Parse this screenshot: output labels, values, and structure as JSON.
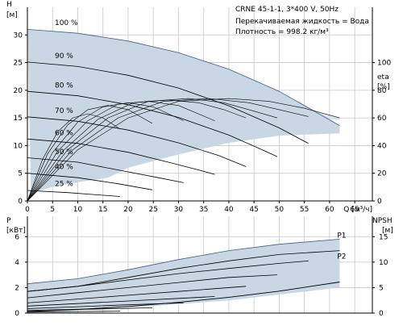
{
  "chart_data": [
    {
      "type": "line",
      "title": "CRNE 45-1-1, 3*400 V, 50Hz",
      "info_lines": [
        "Перекачиваемая жидкость = Вода",
        "Плотность = 998.2 кг/м³"
      ],
      "xlabel": "Q [м³/ч]",
      "ylabel_left": [
        "H",
        "[м]"
      ],
      "ylabel_right": [
        "eta",
        "[%]"
      ],
      "x_ticks": [
        "0",
        "5",
        "10",
        "15",
        "20",
        "25",
        "30",
        "35",
        "40",
        "45",
        "50",
        "55",
        "60",
        "65",
        "Q [м³/ч]"
      ],
      "y_left_ticks": [
        "0",
        "5",
        "10",
        "15",
        "20",
        "25",
        "30"
      ],
      "y_right_ticks": [
        "0",
        "20",
        "40",
        "60",
        "80",
        "100"
      ],
      "xlim": [
        0,
        68.5
      ],
      "ylim_left": [
        0,
        35
      ],
      "ylim_right": [
        0,
        140
      ],
      "grid": true,
      "speed_labels": [
        "100 %",
        "90 %",
        "80 %",
        "70 %",
        "60 %",
        "50 %",
        "40 %",
        "25 %"
      ],
      "operating_range": {
        "upper": [
          [
            0,
            31
          ],
          [
            10,
            30.3
          ],
          [
            20,
            28.9
          ],
          [
            30,
            26.8
          ],
          [
            40,
            23.8
          ],
          [
            50,
            19.8
          ],
          [
            60,
            14.9
          ],
          [
            62,
            13.6
          ]
        ],
        "lower": [
          [
            0.7,
            1.5
          ],
          [
            5,
            2.5
          ],
          [
            10,
            3.4
          ],
          [
            16,
            4.2
          ],
          [
            20,
            6
          ],
          [
            30,
            8.4
          ],
          [
            40,
            10.5
          ],
          [
            50,
            11.8
          ],
          [
            62,
            12.2
          ]
        ]
      },
      "series": [
        {
          "values": [
            [
              0,
              31
            ],
            [
              10,
              30.3
            ],
            [
              20,
              28.9
            ],
            [
              30,
              26.8
            ],
            [
              40,
              23.8
            ],
            [
              50,
              19.8
            ],
            [
              62,
              13.6
            ]
          ]
        },
        {
          "values": [
            [
              0,
              25.1
            ],
            [
              10,
              24.3
            ],
            [
              20,
              22.7
            ],
            [
              30,
              20.4
            ],
            [
              40,
              17.2
            ],
            [
              50,
              13.2
            ],
            [
              55.8,
              10.4
            ]
          ]
        },
        {
          "values": [
            [
              0,
              19.8
            ],
            [
              10,
              19
            ],
            [
              20,
              17.4
            ],
            [
              30,
              15.1
            ],
            [
              40,
              11.9
            ],
            [
              46,
              9.5
            ],
            [
              49.6,
              8
            ]
          ]
        },
        {
          "values": [
            [
              0,
              15.2
            ],
            [
              10,
              14.4
            ],
            [
              20,
              12.8
            ],
            [
              30,
              10.5
            ],
            [
              38,
              8.2
            ],
            [
              43.4,
              6.2
            ]
          ]
        },
        {
          "values": [
            [
              0,
              11.2
            ],
            [
              10,
              10.4
            ],
            [
              20,
              8.8
            ],
            [
              28,
              7
            ],
            [
              34,
              5.6
            ],
            [
              37.2,
              4.8
            ]
          ]
        },
        {
          "values": [
            [
              0,
              7.8
            ],
            [
              10,
              7
            ],
            [
              18,
              5.6
            ],
            [
              26,
              4.2
            ],
            [
              31,
              3.3
            ]
          ]
        },
        {
          "values": [
            [
              0,
              5
            ],
            [
              10,
              4.2
            ],
            [
              18,
              3.1
            ],
            [
              24.8,
              2
            ]
          ]
        },
        {
          "values": [
            [
              0,
              1.9
            ],
            [
              8,
              1.5
            ],
            [
              14,
              1.1
            ],
            [
              18.4,
              0.8
            ]
          ]
        }
      ],
      "efficiency_series": [
        {
          "values": [
            [
              0,
              0
            ],
            [
              10,
              37
            ],
            [
              20,
              60
            ],
            [
              30,
              72
            ],
            [
              40,
              74
            ],
            [
              48,
              72
            ],
            [
              55,
              67
            ],
            [
              62,
              60
            ]
          ]
        },
        {
          "values": [
            [
              0,
              0
            ],
            [
              9,
              37
            ],
            [
              18,
              60
            ],
            [
              27,
              72
            ],
            [
              36,
              74
            ],
            [
              44,
              71
            ],
            [
              50,
              66
            ],
            [
              55.8,
              61
            ]
          ]
        },
        {
          "values": [
            [
              0,
              0
            ],
            [
              8,
              37
            ],
            [
              16,
              60
            ],
            [
              24,
              72
            ],
            [
              32,
              74
            ],
            [
              39,
              71
            ],
            [
              44,
              66
            ],
            [
              49.6,
              60
            ]
          ]
        },
        {
          "values": [
            [
              0,
              0
            ],
            [
              7,
              36
            ],
            [
              14,
              59
            ],
            [
              21,
              71
            ],
            [
              28,
              73
            ],
            [
              34,
              71
            ],
            [
              39,
              66
            ],
            [
              43.4,
              60
            ]
          ]
        },
        {
          "values": [
            [
              0,
              0
            ],
            [
              6,
              36
            ],
            [
              12,
              58
            ],
            [
              18,
              70
            ],
            [
              24,
              72
            ],
            [
              30,
              69
            ],
            [
              37.2,
              58
            ]
          ]
        },
        {
          "values": [
            [
              0,
              0
            ],
            [
              5,
              35
            ],
            [
              10,
              57
            ],
            [
              15,
              68
            ],
            [
              20,
              71
            ],
            [
              25,
              68
            ],
            [
              31,
              58
            ]
          ]
        },
        {
          "values": [
            [
              0,
              0
            ],
            [
              4,
              34
            ],
            [
              8,
              55
            ],
            [
              12,
              66
            ],
            [
              16,
              69
            ],
            [
              20,
              66
            ],
            [
              24.8,
              56
            ]
          ]
        },
        {
          "values": [
            [
              0,
              0
            ],
            [
              3,
              30
            ],
            [
              6,
              50
            ],
            [
              9,
              60
            ],
            [
              12,
              63
            ],
            [
              15,
              60
            ],
            [
              18.4,
              52
            ]
          ]
        }
      ],
      "operating_envelope_efficiency": {
        "upper": [
          [
            0,
            0
          ],
          [
            10,
            37
          ],
          [
            20,
            60
          ],
          [
            30,
            72
          ],
          [
            40,
            74
          ],
          [
            50,
            71
          ],
          [
            62,
            60
          ]
        ],
        "lower": [
          [
            0,
            0
          ],
          [
            6,
            52
          ],
          [
            12,
            62
          ],
          [
            18,
            68
          ],
          [
            26,
            70
          ],
          [
            40,
            72
          ],
          [
            62,
            58
          ]
        ]
      }
    },
    {
      "type": "line",
      "xlabel": "",
      "ylabel_left": [
        "P",
        "[кВт]"
      ],
      "ylabel_right": [
        "NPSH",
        "[м]"
      ],
      "y_left_ticks": [
        "0",
        "2",
        "4",
        "6"
      ],
      "y_right_ticks": [
        "0",
        "5",
        "10",
        "15"
      ],
      "xlim": [
        0,
        68.5
      ],
      "ylim_left": [
        0,
        7.6
      ],
      "ylim_right": [
        0,
        19
      ],
      "grid": true,
      "curve_labels": [
        "P1",
        "P2"
      ],
      "operating_range": {
        "upper": [
          [
            0,
            2.3
          ],
          [
            10,
            2.7
          ],
          [
            20,
            3.4
          ],
          [
            30,
            4.2
          ],
          [
            40,
            4.9
          ],
          [
            50,
            5.4
          ],
          [
            62,
            5.8
          ]
        ],
        "lower": [
          [
            0,
            0
          ],
          [
            20,
            0.4
          ],
          [
            40,
            1
          ],
          [
            62,
            2
          ]
        ]
      },
      "series": [
        {
          "name": "P1",
          "values": [
            [
              0,
              2.3
            ],
            [
              10,
              2.7
            ],
            [
              20,
              3.4
            ],
            [
              30,
              4.2
            ],
            [
              40,
              4.9
            ],
            [
              50,
              5.4
            ],
            [
              62,
              5.8
            ]
          ]
        },
        {
          "name": "P2",
          "values": [
            [
              0,
              1.7
            ],
            [
              10,
              2.1
            ],
            [
              20,
              2.8
            ],
            [
              30,
              3.5
            ],
            [
              40,
              4.1
            ],
            [
              50,
              4.6
            ],
            [
              62,
              4.9
            ]
          ]
        },
        {
          "values": [
            [
              0,
              1.7
            ],
            [
              10,
              2.1
            ],
            [
              20,
              2.6
            ],
            [
              30,
              3.1
            ],
            [
              40,
              3.5
            ],
            [
              50,
              3.9
            ],
            [
              55.8,
              4.1
            ]
          ]
        },
        {
          "values": [
            [
              0,
              1.2
            ],
            [
              10,
              1.6
            ],
            [
              20,
              2
            ],
            [
              30,
              2.4
            ],
            [
              40,
              2.8
            ],
            [
              49.6,
              3
            ]
          ]
        },
        {
          "values": [
            [
              0,
              0.8
            ],
            [
              10,
              1.1
            ],
            [
              20,
              1.4
            ],
            [
              30,
              1.7
            ],
            [
              43.4,
              2.1
            ]
          ]
        },
        {
          "values": [
            [
              0,
              0.55
            ],
            [
              10,
              0.75
            ],
            [
              20,
              0.95
            ],
            [
              30,
              1.15
            ],
            [
              37.2,
              1.3
            ]
          ]
        },
        {
          "values": [
            [
              0,
              0.35
            ],
            [
              10,
              0.5
            ],
            [
              20,
              0.65
            ],
            [
              31,
              0.8
            ]
          ]
        },
        {
          "values": [
            [
              0,
              0.2
            ],
            [
              10,
              0.3
            ],
            [
              18,
              0.35
            ],
            [
              24.8,
              0.42
            ]
          ]
        },
        {
          "values": [
            [
              0,
              0.08
            ],
            [
              10,
              0.12
            ],
            [
              18.4,
              0.15
            ]
          ]
        }
      ],
      "npsh_series": [
        {
          "values": [
            [
              0,
              0.3
            ],
            [
              10,
              0.7
            ],
            [
              20,
              1.3
            ],
            [
              30,
              2.1
            ],
            [
              40,
              3.1
            ],
            [
              50,
              4.3
            ],
            [
              62,
              6.1
            ]
          ]
        }
      ]
    }
  ],
  "colors": {
    "envelope_fill": "#c9d7e4",
    "curve": "#000000",
    "envelope_edge": "#3f5f86",
    "grid": "#c8c8c8"
  }
}
